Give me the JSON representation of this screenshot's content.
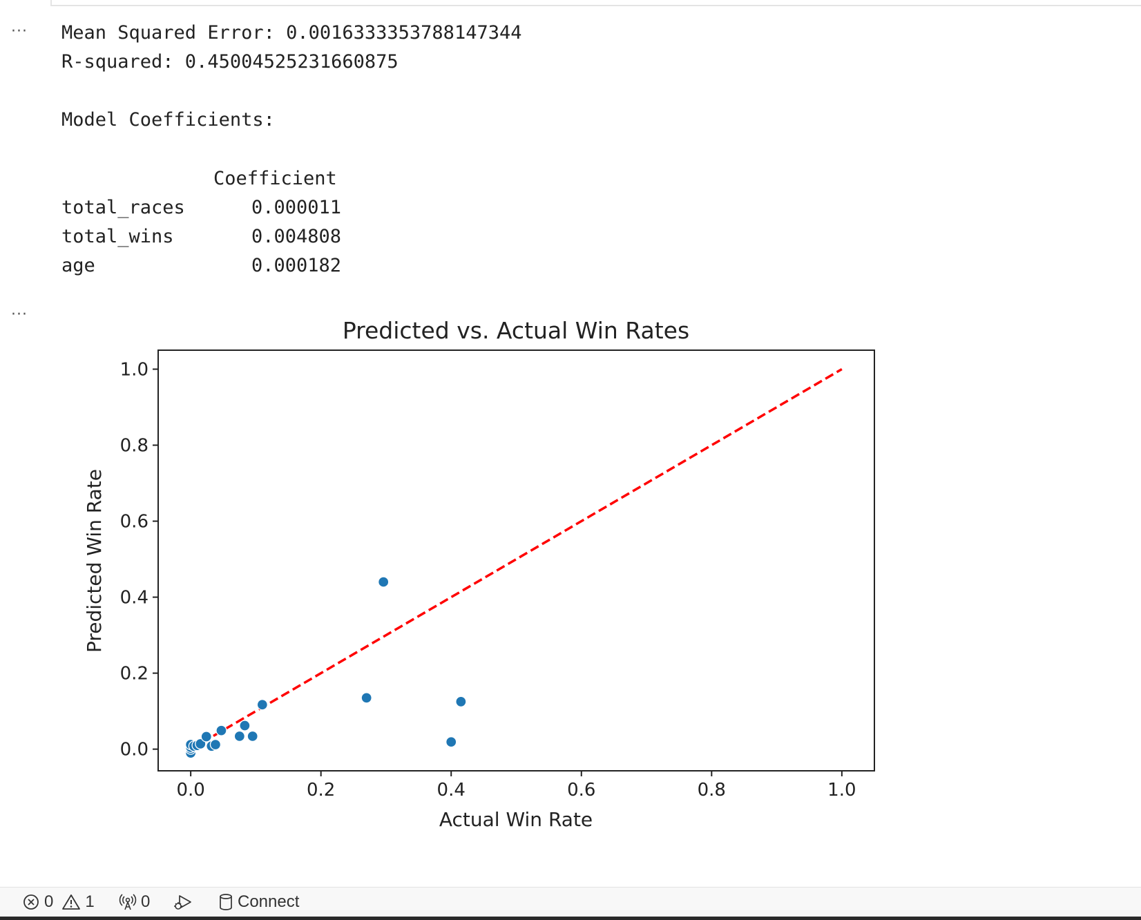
{
  "output": {
    "mse_line": "Mean Squared Error: 0.0016333353788147344",
    "r2_line": "R-squared: 0.45004525231660875",
    "coef_heading": "Model Coefficients:",
    "table": {
      "header": "Coefficient",
      "rows": [
        {
          "name": "total_races",
          "value": "0.000011"
        },
        {
          "name": "total_wins",
          "value": "0.004808"
        },
        {
          "name": "age",
          "value": "0.000182"
        }
      ]
    }
  },
  "chart_data": {
    "type": "scatter",
    "title": "Predicted vs. Actual Win Rates",
    "xlabel": "Actual Win Rate",
    "ylabel": "Predicted Win Rate",
    "xlim": [
      -0.05,
      1.05
    ],
    "ylim": [
      -0.057,
      1.05
    ],
    "xticks": [
      "0.0",
      "0.2",
      "0.4",
      "0.6",
      "0.8",
      "1.0"
    ],
    "yticks": [
      "0.0",
      "0.2",
      "0.4",
      "0.6",
      "0.8",
      "1.0"
    ],
    "point_color": "#1f77b4",
    "reference_line": {
      "from": [
        0,
        0
      ],
      "to": [
        1,
        1
      ],
      "color": "#ff0000",
      "style": "dashed"
    },
    "points": [
      {
        "x": 0.0,
        "y": -0.01
      },
      {
        "x": 0.0,
        "y": 0.0
      },
      {
        "x": 0.0,
        "y": 0.005
      },
      {
        "x": 0.0,
        "y": 0.012
      },
      {
        "x": 0.005,
        "y": 0.008
      },
      {
        "x": 0.01,
        "y": 0.01
      },
      {
        "x": 0.015,
        "y": 0.014
      },
      {
        "x": 0.024,
        "y": 0.033
      },
      {
        "x": 0.032,
        "y": 0.008
      },
      {
        "x": 0.038,
        "y": 0.012
      },
      {
        "x": 0.047,
        "y": 0.049
      },
      {
        "x": 0.075,
        "y": 0.034
      },
      {
        "x": 0.083,
        "y": 0.062
      },
      {
        "x": 0.095,
        "y": 0.034
      },
      {
        "x": 0.11,
        "y": 0.117
      },
      {
        "x": 0.27,
        "y": 0.135
      },
      {
        "x": 0.296,
        "y": 0.44
      },
      {
        "x": 0.4,
        "y": 0.019
      },
      {
        "x": 0.415,
        "y": 0.125
      }
    ]
  },
  "statusbar": {
    "errors": "0",
    "warnings": "1",
    "ports": "0",
    "connect": "Connect"
  },
  "icons": [
    "error-circle-icon",
    "warning-triangle-icon",
    "broadcast-icon",
    "debug-run-icon",
    "database-icon",
    "ellipsis-icon"
  ]
}
